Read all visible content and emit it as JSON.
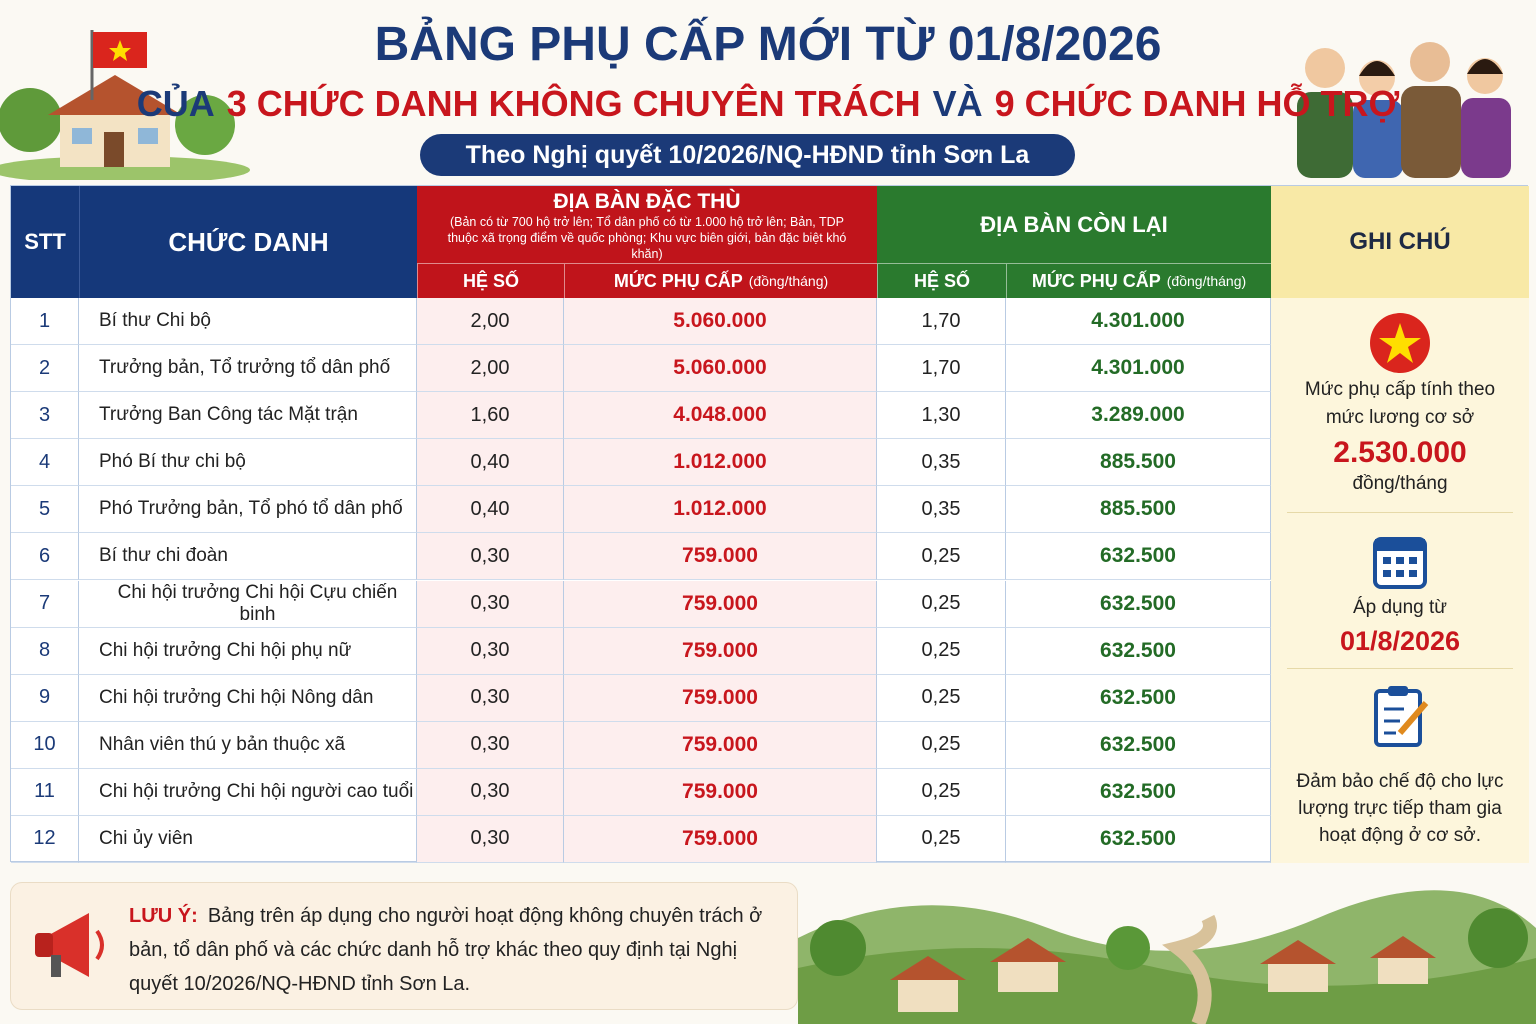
{
  "header": {
    "title": "BẢNG PHỤ CẤP MỚI TỪ 01/8/2026",
    "subtitle": [
      "CỦA",
      "3 CHỨC DANH KHÔNG CHUYÊN TRÁCH",
      "VÀ",
      "9 CHỨC DANH HỖ TRỢ"
    ],
    "badge": "Theo Nghị quyết 10/2026/NQ-HĐND tỉnh Sơn La"
  },
  "table": {
    "columns": {
      "stt": "STT",
      "title": "CHỨC DANH",
      "special": "ĐỊA BÀN ĐẶC THÙ",
      "special_note": "(Bản có từ 700 hộ trở lên; Tổ dân phố có từ 1.000 hộ trở lên; Bản, TDP thuộc xã trọng điểm về quốc phòng; Khu vực biên giới, bản đặc biệt khó khăn)",
      "other": "ĐỊA BÀN CÒN LẠI",
      "notes": "GHI CHÚ",
      "coef": "HỆ SỐ",
      "amount": "MỨC PHỤ CẤP",
      "unit": "(đồng/tháng)"
    },
    "rows": [
      [
        "1",
        "Bí thư Chi bộ",
        "2,00",
        "5.060.000",
        "1,70",
        "4.301.000"
      ],
      [
        "2",
        "Trưởng bản, Tổ trưởng tổ dân phố",
        "2,00",
        "5.060.000",
        "1,70",
        "4.301.000"
      ],
      [
        "3",
        "Trưởng Ban Công tác Mặt trận",
        "1,60",
        "4.048.000",
        "1,30",
        "3.289.000"
      ],
      [
        "4",
        "Phó Bí thư chi bộ",
        "0,40",
        "1.012.000",
        "0,35",
        "885.500"
      ],
      [
        "5",
        "Phó Trưởng bản, Tổ phó tổ dân phố",
        "0,40",
        "1.012.000",
        "0,35",
        "885.500"
      ],
      [
        "6",
        "Bí thư chi đoàn",
        "0,30",
        "759.000",
        "0,25",
        "632.500"
      ],
      [
        "7",
        "Chi hội trưởng Chi hội Cựu chiến binh",
        "0,30",
        "759.000",
        "0,25",
        "632.500"
      ],
      [
        "8",
        "Chi hội trưởng Chi hội phụ nữ",
        "0,30",
        "759.000",
        "0,25",
        "632.500"
      ],
      [
        "9",
        "Chi hội trưởng Chi hội Nông dân",
        "0,30",
        "759.000",
        "0,25",
        "632.500"
      ],
      [
        "10",
        "Nhân viên thú y bản thuộc xã",
        "0,30",
        "759.000",
        "0,25",
        "632.500"
      ],
      [
        "11",
        "Chi hội trưởng Chi hội người cao tuổi",
        "0,30",
        "759.000",
        "0,25",
        "632.500"
      ],
      [
        "12",
        "Chi ủy viên",
        "0,30",
        "759.000",
        "0,25",
        "632.500"
      ]
    ]
  },
  "notes": {
    "base_text": "Mức phụ cấp tính theo mức lương cơ sở",
    "base_value": "2.530.000",
    "base_unit": "đồng/tháng",
    "effective_label": "Áp dụng từ",
    "effective_date": "01/8/2026",
    "guarantee": "Đảm bảo chế độ cho lực lượng trực tiếp tham gia hoạt động ở cơ sở."
  },
  "footer": {
    "label": "LƯU Ý:",
    "text": "Bảng trên áp dụng cho người hoạt động không chuyên trách ở bản, tổ dân phố và các chức danh hỗ trợ khác theo quy định tại Nghị quyết 10/2026/NQ-HĐND tỉnh Sơn La."
  }
}
